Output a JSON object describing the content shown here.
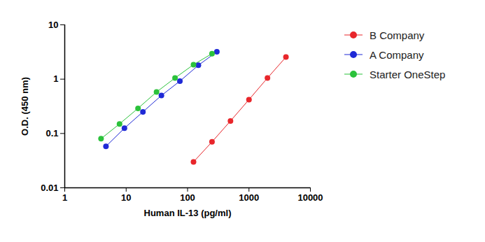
{
  "chart_data": {
    "type": "line",
    "x_label": "Human IL-13 (pg/ml)",
    "y_label": "O.D. (450 nm)",
    "log": true,
    "xlim": [
      1,
      10000
    ],
    "xticks": [
      1,
      10,
      100,
      1000,
      10000
    ],
    "ylim": [
      0.01,
      10
    ],
    "yticks": [
      0.01,
      0.1,
      1,
      10
    ],
    "marker": "circle",
    "legend": "right",
    "series": [
      {
        "name": "B Company",
        "color": "#e8262b",
        "x": [
          125,
          250,
          500,
          1000,
          2000,
          4000
        ],
        "values": [
          0.03,
          0.07,
          0.17,
          0.42,
          1.05,
          2.55
        ]
      },
      {
        "name": "A Company",
        "color": "#1f2ad6",
        "x": [
          4.69,
          9.38,
          18.75,
          37.5,
          75,
          150,
          300
        ],
        "values": [
          0.058,
          0.125,
          0.25,
          0.5,
          0.92,
          1.8,
          3.2
        ]
      },
      {
        "name": "Starter OneStep",
        "color": "#2bc23b",
        "x": [
          3.9,
          7.8,
          15.6,
          31.25,
          62.5,
          125,
          250
        ],
        "values": [
          0.08,
          0.15,
          0.29,
          0.58,
          1.05,
          1.85,
          2.95
        ]
      }
    ]
  }
}
